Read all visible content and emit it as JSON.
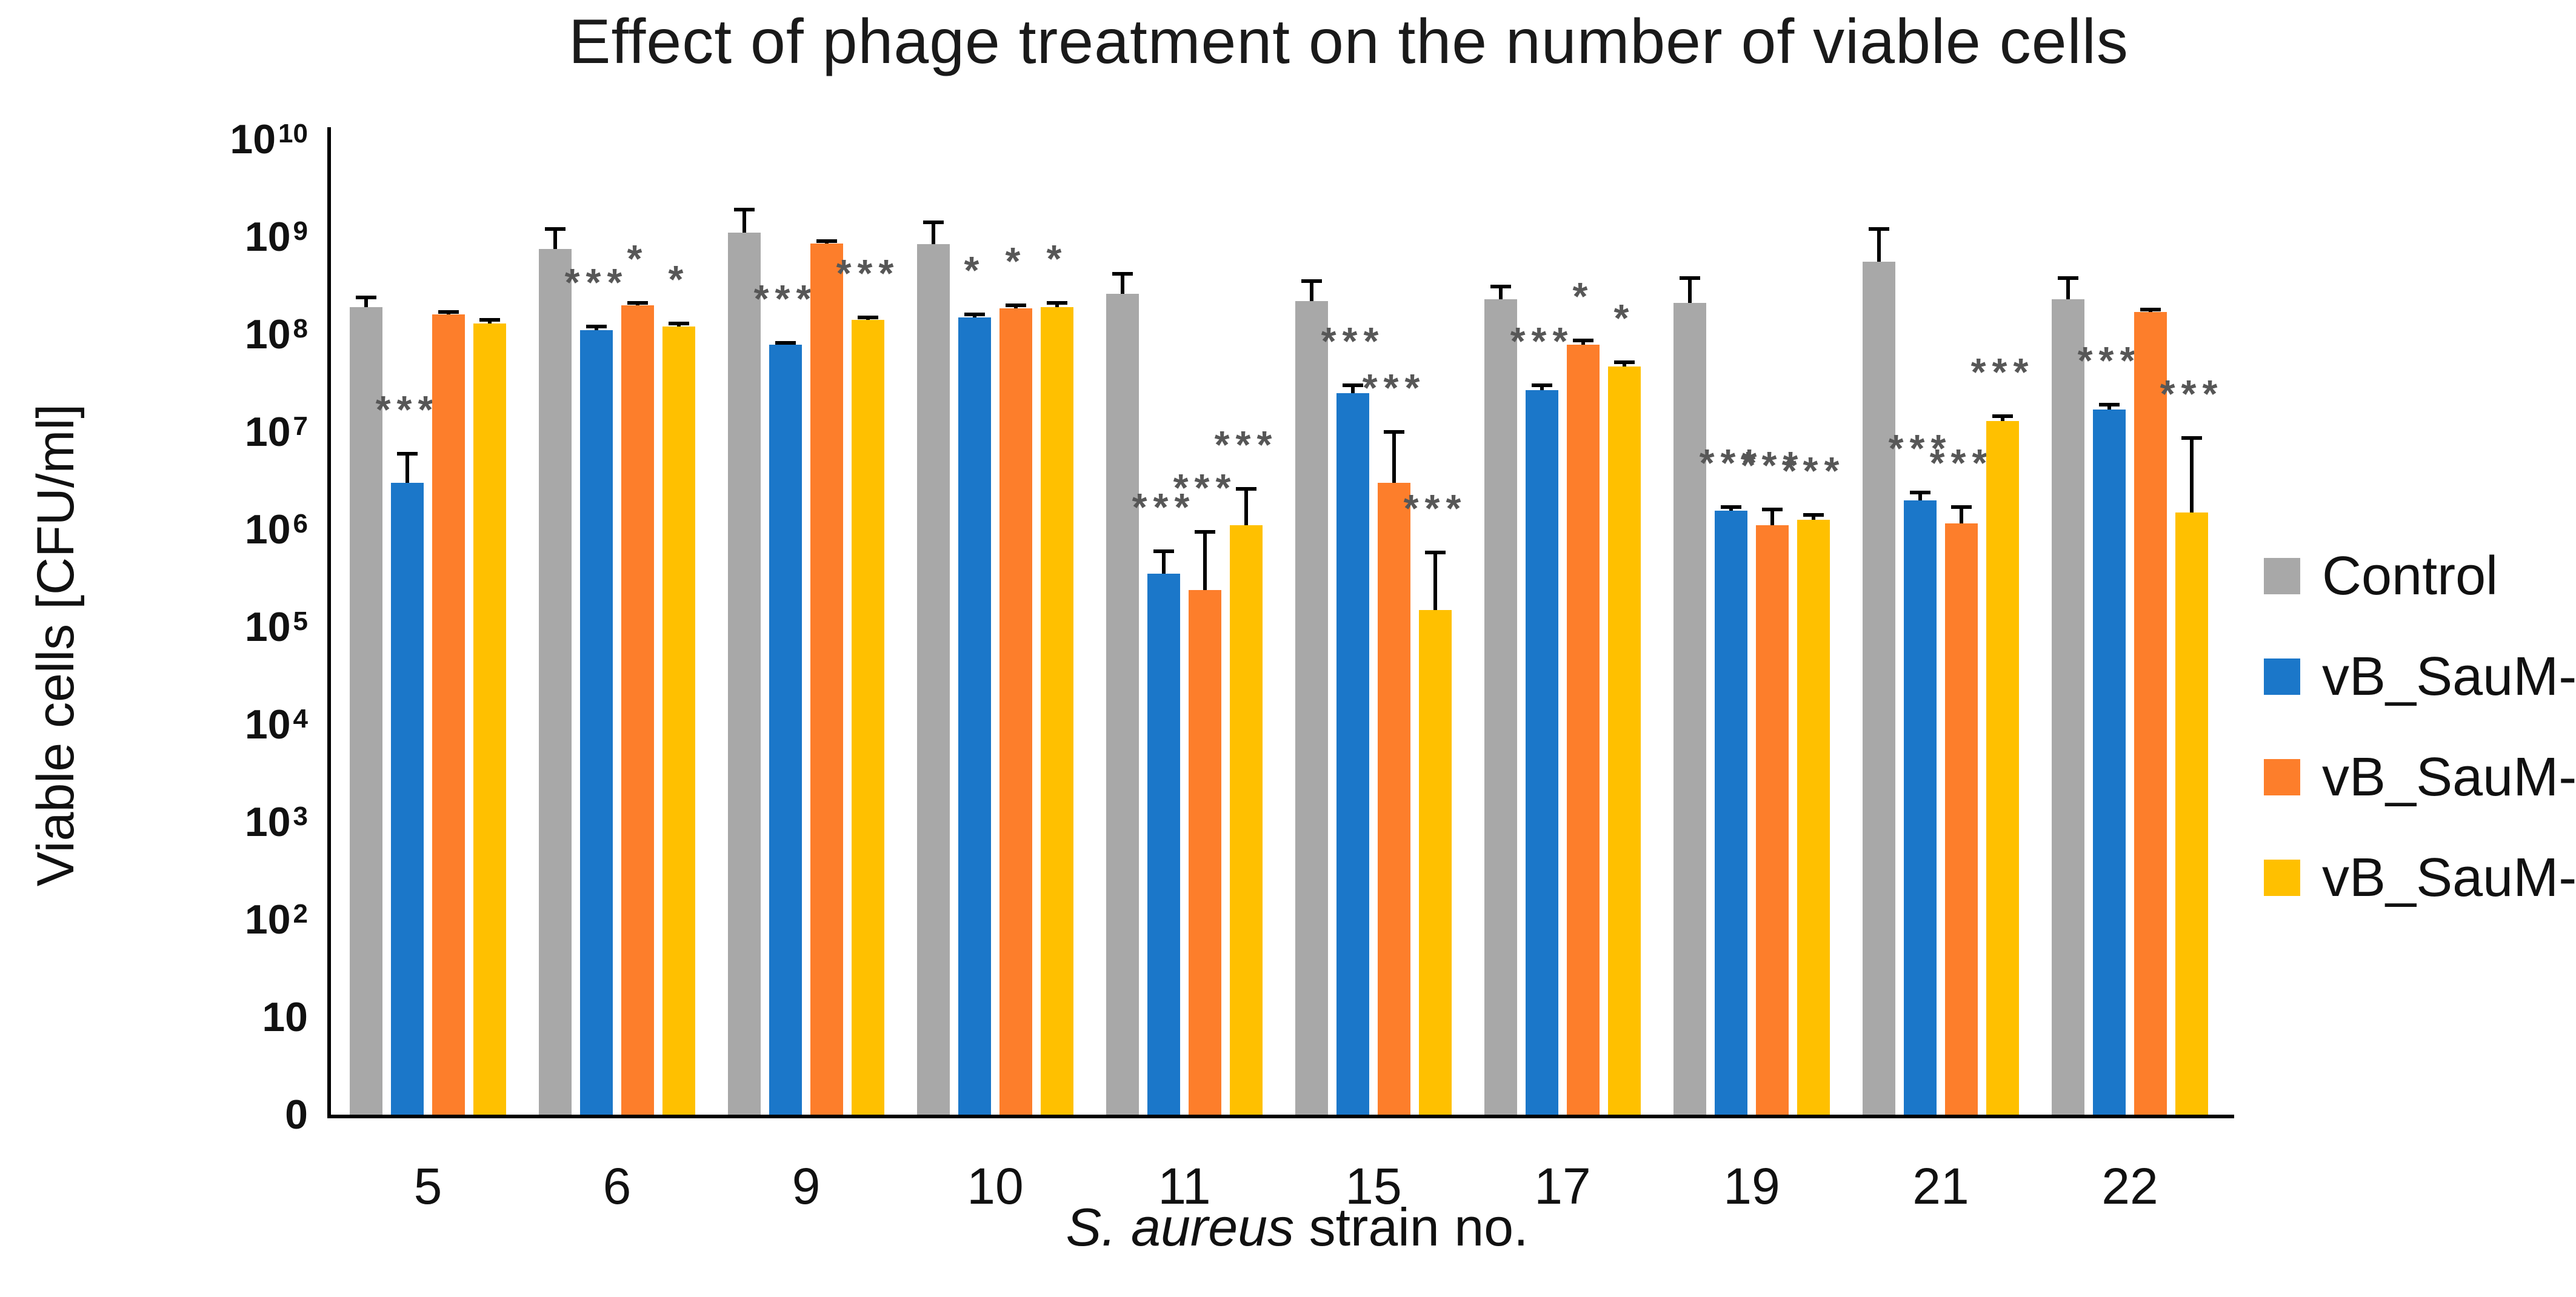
{
  "title": "Effect of phage treatment on the number of viable cells",
  "axes": {
    "y_title": "Viable cells [CFU/ml]",
    "x_title_italic": "S. aureus",
    "x_title_rest": " strain no.",
    "y_ticks": [
      {
        "base": "10",
        "exp": "10",
        "decade": 10
      },
      {
        "base": "10",
        "exp": "9",
        "decade": 9
      },
      {
        "base": "10",
        "exp": "8",
        "decade": 8
      },
      {
        "base": "10",
        "exp": "7",
        "decade": 7
      },
      {
        "base": "10",
        "exp": "6",
        "decade": 6
      },
      {
        "base": "10",
        "exp": "5",
        "decade": 5
      },
      {
        "base": "10",
        "exp": "4",
        "decade": 4
      },
      {
        "base": "10",
        "exp": "3",
        "decade": 3
      },
      {
        "base": "10",
        "exp": "2",
        "decade": 2
      },
      {
        "base": "10",
        "exp": "",
        "decade": 1
      },
      {
        "base": "0",
        "exp": "",
        "decade": 0
      }
    ]
  },
  "chart_data": {
    "type": "bar",
    "title": "Effect of phage treatment on the number of viable cells",
    "xlabel": "S. aureus strain no.",
    "ylabel": "Viable cells [CFU/ml]",
    "y_scale": "log10",
    "ylim": [
      0,
      10000000000.0
    ],
    "grid": false,
    "legend_position": "right",
    "categories": [
      "5",
      "6",
      "9",
      "10",
      "11",
      "15",
      "17",
      "19",
      "21",
      "22"
    ],
    "series": [
      {
        "name": "Control",
        "color": "#A8A8A8",
        "values": [
          190000000.0,
          750000000.0,
          1100000000.0,
          840000000.0,
          260000000.0,
          220000000.0,
          230000000.0,
          210000000.0,
          560000000.0,
          230000000.0
        ],
        "err_upper": [
          240000000.0,
          1200000000.0,
          1900000000.0,
          1400000000.0,
          420000000.0,
          350000000.0,
          310000000.0,
          380000000.0,
          1200000000.0,
          380000000.0
        ],
        "significance": [
          "",
          "",
          "",
          "",
          "",
          "",
          "",
          "",
          "",
          ""
        ]
      },
      {
        "name": "vB_SauM-A",
        "color": "#1B77C9",
        "values": [
          3000000.0,
          110000000.0,
          78000000.0,
          150000000.0,
          350000.0,
          25000000.0,
          27000000.0,
          1550000.0,
          2000000.0,
          17000000.0
        ],
        "err_upper": [
          6000000.0,
          120000000.0,
          82000000.0,
          160000000.0,
          600000.0,
          30000000.0,
          30000000.0,
          1700000.0,
          2400000.0,
          19000000.0
        ],
        "significance": [
          "***",
          "***",
          "***",
          "*",
          "***",
          "***",
          "***",
          "***",
          "***",
          "***"
        ]
      },
      {
        "name": "vB_SauM-C",
        "color": "#FD7E2B",
        "values": [
          160000000.0,
          200000000.0,
          850000000.0,
          185000000.0,
          240000.0,
          3000000.0,
          78000000.0,
          1100000.0,
          1150000.0,
          170000000.0
        ],
        "err_upper": [
          170000000.0,
          210000000.0,
          900000000.0,
          200000000.0,
          950000.0,
          10000000.0,
          87000000.0,
          1600000.0,
          1700000.0,
          180000000.0
        ],
        "significance": [
          "",
          "*",
          "",
          "*",
          "***",
          "***",
          "*",
          "***",
          "***",
          ""
        ]
      },
      {
        "name": "vB_SauM-D",
        "color": "#FFC000",
        "values": [
          130000000.0,
          120000000.0,
          140000000.0,
          190000000.0,
          1100000.0,
          150000.0,
          47000000.0,
          1250000.0,
          13000000.0,
          1500000.0
        ],
        "err_upper": [
          140000000.0,
          130000000.0,
          150000000.0,
          210000000.0,
          2600000.0,
          580000.0,
          52000000.0,
          1400000.0,
          14500000.0,
          8700000.0
        ],
        "significance": [
          "",
          "*",
          "***",
          "*",
          "***",
          "***",
          "*",
          "***",
          "***",
          "***"
        ]
      }
    ],
    "significance_color": "#575757"
  }
}
